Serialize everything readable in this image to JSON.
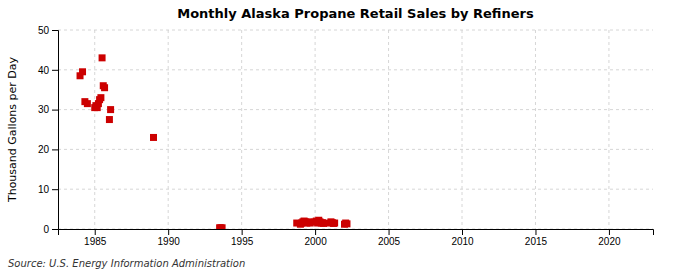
{
  "chart_data": {
    "type": "scatter",
    "title": "Monthly Alaska Propane Retail Sales by Refiners",
    "ylabel": "Thousand Gallons per Day",
    "annotations": [
      "Source: U.S. Energy Information Administration"
    ],
    "color": "#cc0000",
    "marker": "square",
    "grid": true,
    "xlim": [
      1982.5,
      2023
    ],
    "ylim": [
      0,
      50
    ],
    "xticks": [
      1985,
      1990,
      1995,
      2000,
      2005,
      2010,
      2015,
      2020
    ],
    "yticks": [
      0,
      10,
      20,
      30,
      40,
      50
    ],
    "x": [
      1984.0,
      1984.17,
      1984.33,
      1984.5,
      1985.0,
      1985.08,
      1985.17,
      1985.25,
      1985.33,
      1985.42,
      1985.5,
      1985.58,
      1985.67,
      1986.0,
      1986.08,
      1989.0,
      1993.5,
      1993.58,
      1993.67,
      1998.75,
      1999.0,
      1999.08,
      1999.17,
      1999.25,
      1999.33,
      1999.42,
      1999.5,
      1999.58,
      1999.67,
      2000.0,
      2000.08,
      2000.17,
      2000.25,
      2000.33,
      2000.42,
      2000.5,
      2000.58,
      2001.0,
      2001.08,
      2001.17,
      2001.25,
      2001.33,
      2002.0,
      2002.08,
      2002.17
    ],
    "values": [
      38.5,
      39.5,
      32.0,
      31.5,
      30.5,
      31.0,
      30.5,
      31.5,
      32.5,
      33.0,
      43.0,
      36.0,
      35.5,
      27.5,
      30.0,
      23.0,
      0.3,
      0.3,
      0.3,
      1.5,
      1.2,
      1.5,
      1.8,
      2.0,
      1.8,
      1.5,
      1.6,
      1.8,
      1.5,
      1.8,
      2.0,
      1.5,
      2.2,
      1.8,
      1.5,
      1.6,
      1.4,
      1.5,
      1.8,
      1.6,
      1.4,
      1.5,
      1.2,
      1.5,
      1.3
    ]
  }
}
